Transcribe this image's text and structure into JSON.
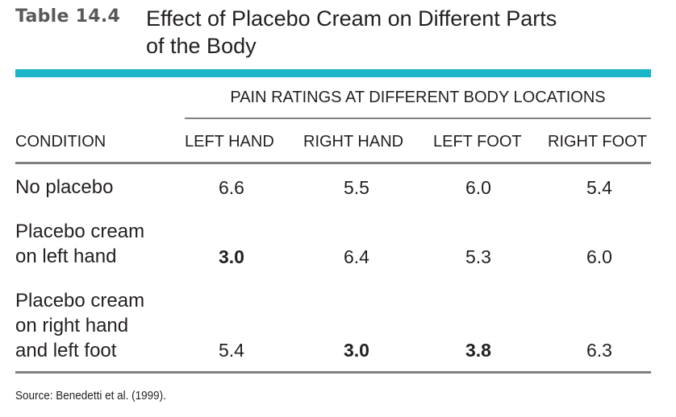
{
  "table": {
    "label": "Table 14.4",
    "title_line1": "Effect of Placebo Cream on Different Parts",
    "title_line2": "of the Body",
    "spanner": "PAIN RATINGS AT DIFFERENT BODY LOCATIONS",
    "columns": [
      "CONDITION",
      "LEFT HAND",
      "RIGHT HAND",
      "LEFT FOOT",
      "RIGHT FOOT"
    ],
    "rows": [
      {
        "condition_lines": [
          "No placebo"
        ],
        "values": [
          "6.6",
          "5.5",
          "6.0",
          "5.4"
        ],
        "bold": [
          false,
          false,
          false,
          false
        ]
      },
      {
        "condition_lines": [
          "Placebo cream",
          "on left hand"
        ],
        "values": [
          "3.0",
          "6.4",
          "5.3",
          "6.0"
        ],
        "bold": [
          true,
          false,
          false,
          false
        ]
      },
      {
        "condition_lines": [
          "Placebo cream",
          "on right hand",
          "and left foot"
        ],
        "values": [
          "5.4",
          "3.0",
          "3.8",
          "6.3"
        ],
        "bold": [
          false,
          true,
          true,
          false
        ]
      }
    ],
    "source": "Source: Benedetti et al. (1999)."
  },
  "colors": {
    "accent_bar": "#1ab6c8",
    "label_gray": "#595959",
    "rule_gray": "#808080",
    "text": "#231f20"
  }
}
